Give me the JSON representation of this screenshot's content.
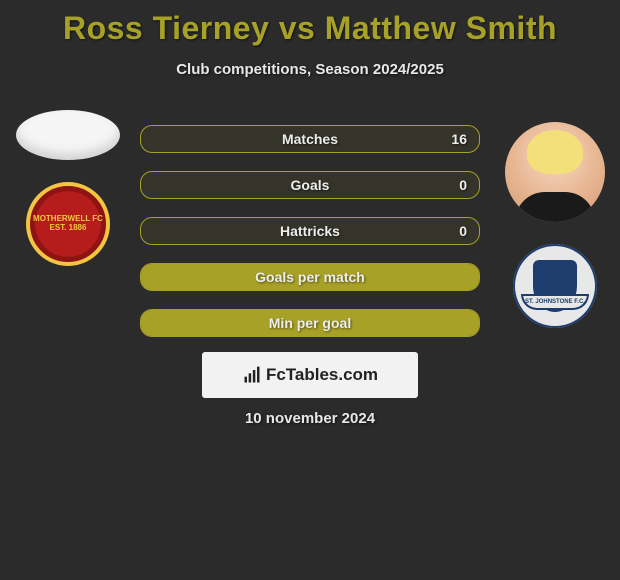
{
  "title": "Ross Tierney vs Matthew Smith",
  "subtitle": "Club competitions, Season 2024/2025",
  "date_line": "10 november 2024",
  "watermark_text": "FcTables.com",
  "colors": {
    "background": "#2b2b2b",
    "accent": "#a8a128",
    "text_light": "#e8e8e8",
    "watermark_bg": "#f2f2f2"
  },
  "stats": [
    {
      "label": "Matches",
      "left_pct": 0,
      "right_value": "16",
      "full": false
    },
    {
      "label": "Goals",
      "left_pct": 0,
      "right_value": "0",
      "full": false
    },
    {
      "label": "Hattricks",
      "left_pct": 0,
      "right_value": "0",
      "full": false
    },
    {
      "label": "Goals per match",
      "left_pct": 100,
      "right_value": "",
      "full": true
    },
    {
      "label": "Min per goal",
      "left_pct": 100,
      "right_value": "",
      "full": true
    }
  ],
  "player1": {
    "name": "Ross Tierney",
    "club_name": "Motherwell",
    "crest_text": "MOTHERWELL FC\nEST. 1886",
    "crest_colors": {
      "primary": "#b71c1c",
      "secondary": "#f5c542"
    }
  },
  "player2": {
    "name": "Matthew Smith",
    "club_name": "St. Johnstone",
    "ribbon_text": "ST. JOHNSTONE F.C.",
    "crest_colors": {
      "primary": "#1c3d6e",
      "secondary": "#e8e8e8"
    }
  }
}
